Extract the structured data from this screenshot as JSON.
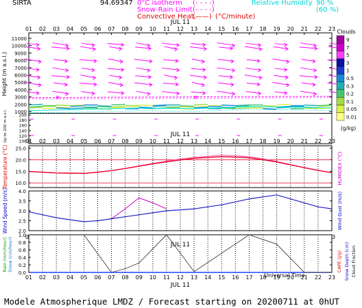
{
  "header": {
    "site": "SIRTA",
    "coords": "94.69347",
    "legend_isotherm_label": "0°C isotherm",
    "legend_isotherm_sample": "(- - - -)",
    "legend_snow_label": "Snow-Rain Limit",
    "legend_snow_sample": "(- - - -)",
    "legend_conv_label": "Convective Heat.",
    "legend_conv_sample": "(——)",
    "legend_conv_unit": "(°C/minute)",
    "rh_label": "Relative Humidity",
    "rh_90": "90 %",
    "rh_60": "(60 %)"
  },
  "footer": {
    "text": "Modele Atmospherique LMDZ / Forecast starting on 20200711 at 0hUT"
  },
  "colors": {
    "wind_arrows": "#ff00ff",
    "isotherm": "#ff00ff",
    "rh": "#00e5e5",
    "temperature": "#e8002a",
    "humidex": "#ff66aa",
    "wind_speed": "#2020c8",
    "wind_gust": "#d000d0",
    "cape": "#404040",
    "panel_text_temp": "#e00000",
    "panel_text_wind": "#0000cc"
  },
  "chart_data": [
    {
      "type": "quiver",
      "panel": "wind-profile",
      "hours": [
        "01",
        "02",
        "03",
        "04",
        "05",
        "06",
        "07",
        "08",
        "09",
        "10",
        "11",
        "12",
        "13",
        "14",
        "15",
        "16",
        "17",
        "18",
        "19",
        "20",
        "21",
        "22",
        "23"
      ],
      "xlabel_date": "JUL 11",
      "ylabel_upper": "Height (m a.s.l.)",
      "ylabel_lower": "Up to 200 m a.s.l.",
      "upper_ticks": [
        "1000",
        "2000",
        "3000",
        "4000",
        "5000",
        "6000",
        "7000",
        "8000",
        "9000",
        "10000",
        "11000"
      ],
      "lower_ticks": [
        "100",
        "120",
        "140",
        "160",
        "180",
        "200"
      ],
      "isotherm_height_m": 2900,
      "levels_m": [
        10200,
        9700,
        8000,
        6800,
        5800,
        4800,
        3600
      ],
      "cloud_band_m": [
        1300,
        2100
      ]
    },
    {
      "type": "colorbar",
      "panel": "clouds",
      "title": "Clouds",
      "unit": "(g/kg)",
      "labels": [
        "9",
        "7",
        "5",
        "3",
        "1",
        "0.5",
        "0.3",
        "0.2",
        "0.1",
        "0.05",
        "0.01"
      ],
      "colors": [
        "#a000a0",
        "#cc00cc",
        "#ff40ff",
        "#0a10a0",
        "#1a3cd0",
        "#1a8ad8",
        "#20b0b0",
        "#40c870",
        "#a0dc40",
        "#dcf050",
        "#ffff80"
      ]
    },
    {
      "type": "line",
      "panel": "temperature",
      "x": [
        "01",
        "02",
        "03",
        "04",
        "05",
        "06",
        "07",
        "08",
        "09",
        "10",
        "11",
        "12",
        "13",
        "14",
        "15",
        "16",
        "17",
        "18",
        "19",
        "20",
        "21",
        "22",
        "23"
      ],
      "ylabel_left": "Temperature (°C)",
      "ylabel_right": "HUMIDEX (°C)",
      "yticks": [
        "10.0",
        "15.0",
        "20.0",
        "25.0"
      ],
      "ylim": [
        8,
        26
      ],
      "series": [
        {
          "name": "Temperature",
          "values": [
            14.9,
            14.6,
            14.3,
            14.2,
            14.1,
            14.6,
            15.3,
            16.2,
            17.2,
            18.2,
            19.1,
            19.9,
            20.6,
            21.0,
            21.3,
            21.1,
            20.8,
            20.0,
            19.0,
            17.8,
            16.6,
            15.4,
            14.4
          ]
        },
        {
          "name": "HUMIDEX",
          "values": [
            14.9,
            14.6,
            14.3,
            14.2,
            14.1,
            14.6,
            15.3,
            16.2,
            17.3,
            18.4,
            19.4,
            20.3,
            21.0,
            21.5,
            21.9,
            21.7,
            21.3,
            20.4,
            19.2,
            17.9,
            16.6,
            15.4,
            14.4
          ]
        }
      ]
    },
    {
      "type": "line",
      "panel": "wind-speed",
      "x": [
        "01",
        "02",
        "03",
        "04",
        "05",
        "06",
        "07",
        "08",
        "09",
        "10",
        "11",
        "12",
        "13",
        "14",
        "15",
        "16",
        "17",
        "18",
        "19",
        "20",
        "21",
        "22",
        "23"
      ],
      "ylabel_left": "Wind Speed (m/s)",
      "ylabel_right": "Wind Gust (m/s)",
      "yticks": [
        "2.0",
        "2.5",
        "3.0",
        "3.5",
        "4.0"
      ],
      "ylim": [
        2.0,
        4.0
      ],
      "series": [
        {
          "name": "Wind Speed",
          "values": [
            2.95,
            2.8,
            2.65,
            2.55,
            2.45,
            2.5,
            2.6,
            2.7,
            2.8,
            2.9,
            3.0,
            3.05,
            3.1,
            3.2,
            3.3,
            3.45,
            3.6,
            3.7,
            3.8,
            3.6,
            3.4,
            3.2,
            3.1
          ]
        },
        {
          "name": "Wind Gust",
          "values": [
            null,
            null,
            null,
            null,
            null,
            null,
            2.6,
            3.1,
            3.65,
            3.4,
            3.1,
            null,
            null,
            null,
            null,
            null,
            null,
            null,
            null,
            null,
            null,
            null,
            null
          ]
        }
      ]
    },
    {
      "type": "line",
      "panel": "precip-cape",
      "x": [
        "01",
        "02",
        "03",
        "04",
        "05",
        "06",
        "07",
        "08",
        "09",
        "10",
        "11",
        "12",
        "13",
        "14",
        "15",
        "16",
        "17",
        "18",
        "19",
        "20",
        "21",
        "22",
        "23"
      ],
      "xlabel_date": "JUL 11",
      "xlabel": "Universal Time",
      "ylabel_left_1": "Rain (mm/hour)",
      "ylabel_left_2": "Snow (cm/hour)",
      "ylabel_right_1": "CAPE (J/g)",
      "ylabel_right_2": "Snow Depth (cm)",
      "ylabel_right_3": "Cloud Fraction",
      "yticks": [
        "0.0",
        "0.2",
        "0.4",
        "0.6",
        "0.8",
        "1.0"
      ],
      "ylim": [
        0,
        1.0
      ],
      "series": [
        {
          "name": "CAPE",
          "values": [
            null,
            null,
            null,
            null,
            1.0,
            null,
            0.0,
            0.1,
            0.25,
            null,
            1.0,
            null,
            0.02,
            null,
            null,
            null,
            1.0,
            null,
            0.75,
            null,
            0.0,
            0.0,
            0.0
          ]
        },
        {
          "name": "Rain",
          "values": [
            0,
            0,
            0,
            0,
            0,
            0,
            0,
            0,
            0,
            0,
            0,
            0,
            0,
            0,
            0,
            0,
            0,
            0,
            0,
            0,
            0,
            0,
            0
          ]
        }
      ]
    }
  ]
}
